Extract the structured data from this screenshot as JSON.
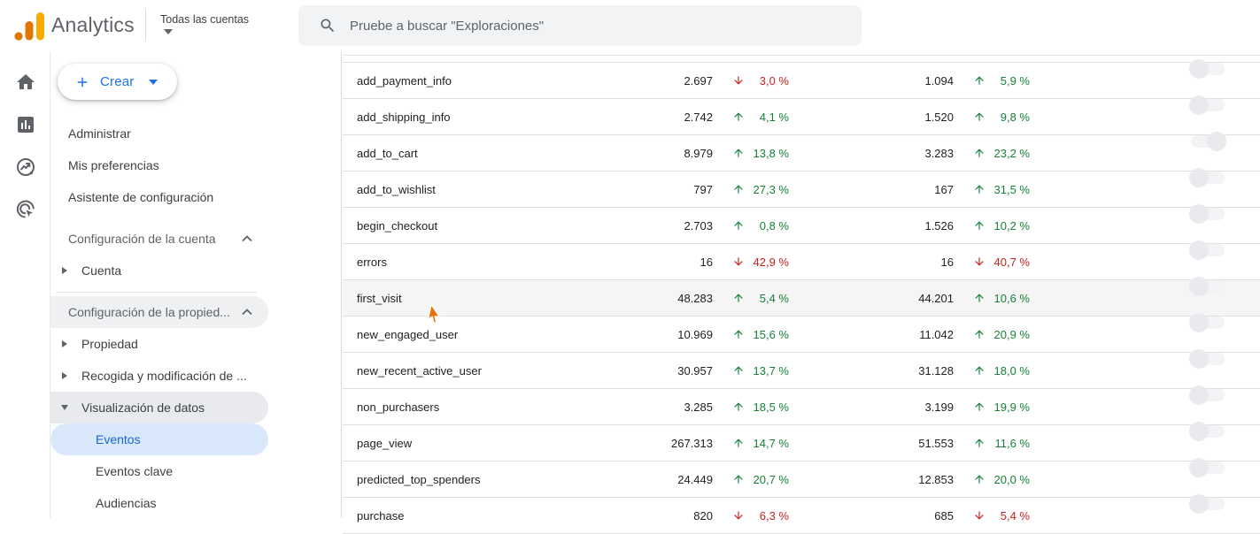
{
  "header": {
    "app_name": "Analytics",
    "account_switcher": "Todas las cuentas",
    "search_placeholder": "Pruebe a buscar \"Exploraciones\""
  },
  "colors": {
    "accent_blue": "#1a73e8",
    "selected_blue_text": "#1967d2",
    "selected_blue_bg": "#d9e7fb",
    "positive_green": "#188038",
    "negative_red": "#c5221f",
    "logo_orange_dark": "#e37400",
    "logo_orange_light": "#f9ab00"
  },
  "rail": {
    "icons": [
      "home-icon",
      "reports-icon",
      "explore-icon",
      "advertising-icon"
    ]
  },
  "sidebar": {
    "create_label": "Crear",
    "admin_label": "Administrar",
    "preferences_label": "Mis preferencias",
    "setup_assistant_label": "Asistente de configuración",
    "account_section_label": "Configuración de la cuenta",
    "account_item_label": "Cuenta",
    "property_section_label": "Configuración de la propied...",
    "property_item_label": "Propiedad",
    "collection_item_label": "Recogida y modificación de ...",
    "data_display_label": "Visualización de datos",
    "events_label": "Eventos",
    "key_events_label": "Eventos clave",
    "audiences_label": "Audiencias",
    "selected_item": "Eventos"
  },
  "table": {
    "rows": [
      {
        "name": "add_payment_info",
        "count": "2.697",
        "trend": "down",
        "change": "3,0 %",
        "count2": "1.094",
        "trend2": "up",
        "change2": "5,9 %",
        "toggle": "off",
        "highlighted": false
      },
      {
        "name": "add_shipping_info",
        "count": "2.742",
        "trend": "up",
        "change": "4,1 %",
        "count2": "1.520",
        "trend2": "up",
        "change2": "9,8 %",
        "toggle": "off",
        "highlighted": false
      },
      {
        "name": "add_to_cart",
        "count": "8.979",
        "trend": "up",
        "change": "13,8 %",
        "count2": "3.283",
        "trend2": "up",
        "change2": "23,2 %",
        "toggle": "on",
        "highlighted": false
      },
      {
        "name": "add_to_wishlist",
        "count": "797",
        "trend": "up",
        "change": "27,3 %",
        "count2": "167",
        "trend2": "up",
        "change2": "31,5 %",
        "toggle": "off",
        "highlighted": false
      },
      {
        "name": "begin_checkout",
        "count": "2.703",
        "trend": "up",
        "change": "0,8 %",
        "count2": "1.526",
        "trend2": "up",
        "change2": "10,2 %",
        "toggle": "off",
        "highlighted": false
      },
      {
        "name": "errors",
        "count": "16",
        "trend": "down",
        "change": "42,9 %",
        "count2": "16",
        "trend2": "down",
        "change2": "40,7 %",
        "toggle": "off",
        "highlighted": false
      },
      {
        "name": "first_visit",
        "count": "48.283",
        "trend": "up",
        "change": "5,4 %",
        "count2": "44.201",
        "trend2": "up",
        "change2": "10,6 %",
        "toggle": "off",
        "highlighted": true
      },
      {
        "name": "new_engaged_user",
        "count": "10.969",
        "trend": "up",
        "change": "15,6 %",
        "count2": "11.042",
        "trend2": "up",
        "change2": "20,9 %",
        "toggle": "off",
        "highlighted": false
      },
      {
        "name": "new_recent_active_user",
        "count": "30.957",
        "trend": "up",
        "change": "13,7 %",
        "count2": "31.128",
        "trend2": "up",
        "change2": "18,0 %",
        "toggle": "off",
        "highlighted": false
      },
      {
        "name": "non_purchasers",
        "count": "3.285",
        "trend": "up",
        "change": "18,5 %",
        "count2": "3.199",
        "trend2": "up",
        "change2": "19,9 %",
        "toggle": "off",
        "highlighted": false
      },
      {
        "name": "page_view",
        "count": "267.313",
        "trend": "up",
        "change": "14,7 %",
        "count2": "51.553",
        "trend2": "up",
        "change2": "11,6 %",
        "toggle": "off",
        "highlighted": false
      },
      {
        "name": "predicted_top_spenders",
        "count": "24.449",
        "trend": "up",
        "change": "20,7 %",
        "count2": "12.853",
        "trend2": "up",
        "change2": "20,0 %",
        "toggle": "off",
        "highlighted": false
      },
      {
        "name": "purchase",
        "count": "820",
        "trend": "down",
        "change": "6,3 %",
        "count2": "685",
        "trend2": "down",
        "change2": "5,4 %",
        "toggle": "off",
        "highlighted": false
      }
    ]
  }
}
